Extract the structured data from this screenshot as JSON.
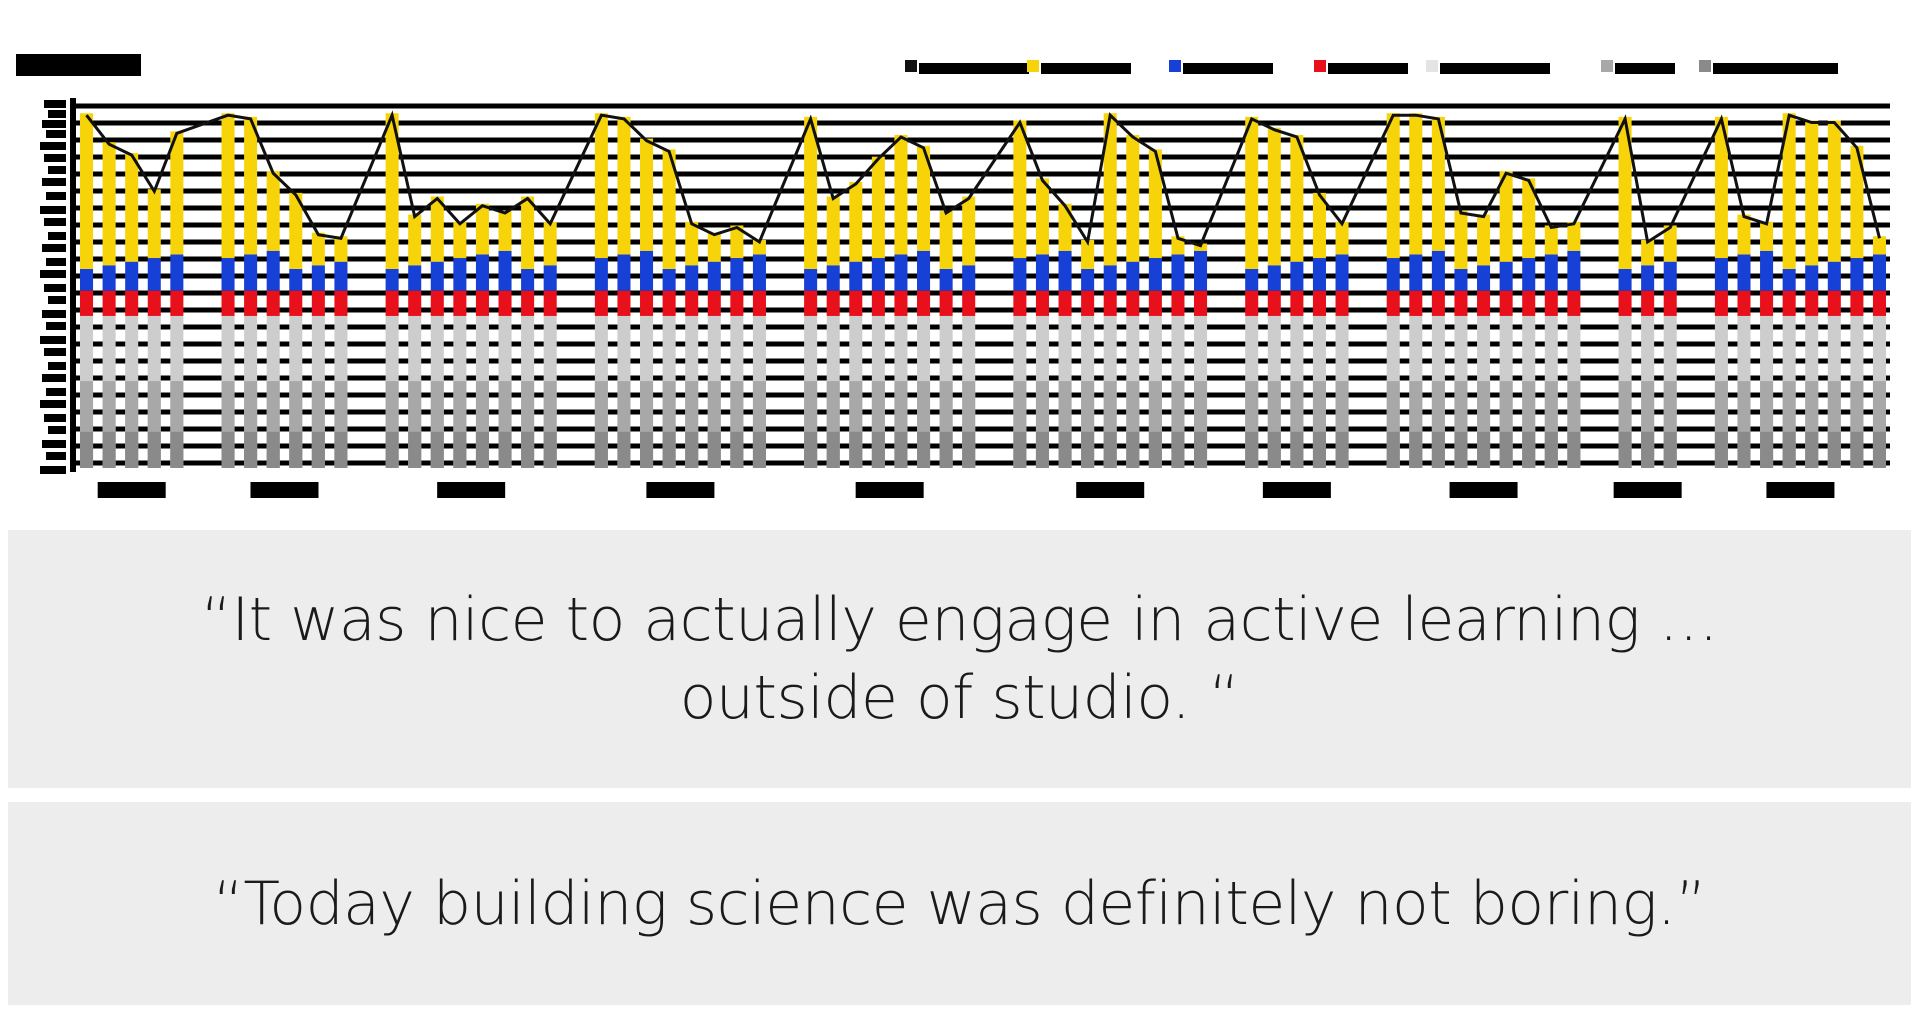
{
  "chart_data": {
    "type": "bar",
    "stacked": true,
    "title": "",
    "legend_position": "top-right",
    "grid": true,
    "colors": {
      "yellow": "#f7d40a",
      "blue": "#1740d6",
      "red": "#e8111b",
      "light_gray": "#cdcdcd",
      "mid_gray": "#a8a8a8",
      "dark_gray": "#8a8a8a",
      "line": "#111111"
    },
    "groups": [
      {
        "label": "",
        "heights": [
          98,
          90,
          87,
          77,
          93
        ]
      },
      {
        "label": "",
        "heights": [
          98,
          97,
          82,
          76,
          65,
          64
        ]
      },
      {
        "label": "",
        "heights": [
          98,
          70,
          75,
          68,
          73,
          71,
          75,
          68
        ]
      },
      {
        "label": "",
        "heights": [
          98,
          97,
          91,
          88,
          68,
          65,
          67,
          63
        ]
      },
      {
        "label": "",
        "heights": [
          97,
          75,
          79,
          86,
          92,
          89,
          71,
          75
        ]
      },
      {
        "label": "",
        "heights": [
          96,
          80,
          73,
          63,
          98,
          92,
          88,
          64,
          62
        ]
      },
      {
        "label": "",
        "heights": [
          97,
          94,
          92,
          76,
          68
        ]
      },
      {
        "label": "",
        "heights": [
          98,
          98,
          97,
          71,
          70,
          82,
          80,
          67,
          68
        ]
      },
      {
        "label": "",
        "heights": [
          97,
          63,
          67
        ]
      },
      {
        "label": "",
        "heights": [
          97,
          70,
          68,
          98,
          96,
          96,
          89,
          64
        ]
      }
    ]
  },
  "quotes": [
    {
      "text": "“It was nice to actually engage in active learning …\noutside of studio. “"
    },
    {
      "text": "“Today building science was definitely not boring.”"
    }
  ]
}
